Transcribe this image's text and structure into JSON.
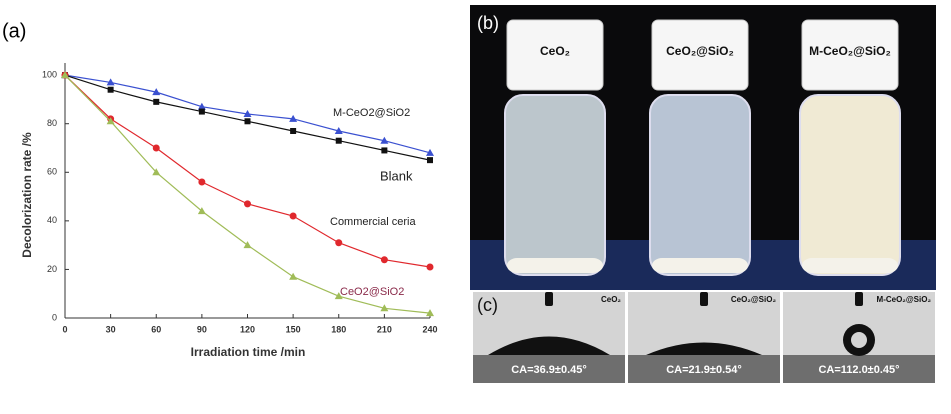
{
  "chart_data": {
    "type": "line",
    "panel_label": "(a)",
    "ylabel": "Decolorization rate /%",
    "xlabel": "Irradiation time /min",
    "x": [
      0,
      30,
      60,
      90,
      120,
      150,
      180,
      210,
      240
    ],
    "xlim": [
      0,
      240
    ],
    "xticks": [
      0,
      30,
      60,
      90,
      120,
      150,
      180,
      210,
      240
    ],
    "ylim": [
      0,
      105
    ],
    "yticks": [
      0,
      20,
      40,
      60,
      80,
      100
    ],
    "series": [
      {
        "name": "M-CeO2@SiO2",
        "color": "#3a50d0",
        "marker": "triangle",
        "values": [
          100,
          97,
          93,
          87,
          84,
          82,
          77,
          73,
          68
        ]
      },
      {
        "name": "Blank",
        "color": "#111111",
        "marker": "square",
        "values": [
          100,
          94,
          89,
          85,
          81,
          77,
          73,
          69,
          65
        ]
      },
      {
        "name": "Commercial ceria",
        "color": "#e0282d",
        "marker": "circle",
        "values": [
          100,
          82,
          70,
          56,
          47,
          42,
          31,
          24,
          21
        ]
      },
      {
        "name": "CeO2@SiO2",
        "color": "#a0bc58",
        "marker": "triangle",
        "values": [
          100,
          81,
          60,
          44,
          30,
          17,
          9,
          4,
          2
        ]
      }
    ]
  },
  "photos": {
    "label_b": "(b)",
    "label_c": "(c)",
    "vials": [
      "CeO₂",
      "CeO₂@SiO₂",
      "M-CeO₂@SiO₂"
    ],
    "contact_angles": [
      {
        "sample": "CeO₂",
        "text": "CA=36.9±0.45°"
      },
      {
        "sample": "CeO₂@SiO₂",
        "text": "CA=21.9±0.54°"
      },
      {
        "sample": "M-CeO₂@SiO₂",
        "text": "CA=112.0±0.45°"
      }
    ]
  }
}
